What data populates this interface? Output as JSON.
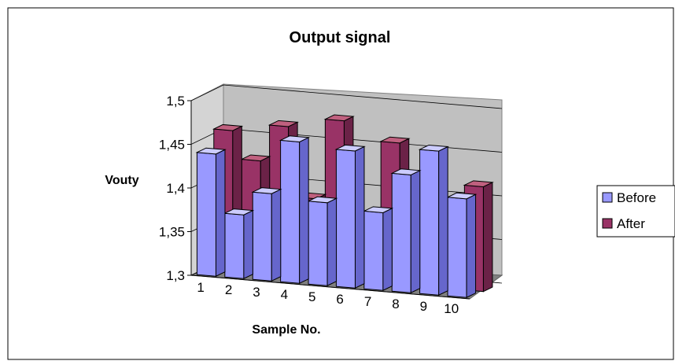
{
  "chart_data": {
    "type": "bar",
    "title": "Output signal",
    "xlabel": "Sample No.",
    "ylabel": "Vouty",
    "categories": [
      "1",
      "2",
      "3",
      "4",
      "5",
      "6",
      "7",
      "8",
      "9",
      "10"
    ],
    "series": [
      {
        "name": "Before",
        "values": [
          1.44,
          1.373,
          1.4,
          1.462,
          1.395,
          1.457,
          1.389,
          1.435,
          1.465,
          1.413
        ]
      },
      {
        "name": "After",
        "values": [
          1.46,
          1.428,
          1.47,
          1.39,
          1.482,
          1.368,
          1.462,
          1.39,
          1.39,
          1.42
        ]
      }
    ],
    "ylim": [
      1.3,
      1.5
    ],
    "yticks": [
      "1,3",
      "1,35",
      "1,4",
      "1,45",
      "1,5"
    ],
    "grid": true,
    "legend": "right",
    "colors": {
      "before_face": "#9999ff",
      "before_side": "#6666cc",
      "before_top": "#ccccff",
      "after_face": "#993366",
      "after_side": "#6b2247",
      "after_top": "#c0607f",
      "wall": "#c0c0c0",
      "floor": "#808080"
    }
  }
}
